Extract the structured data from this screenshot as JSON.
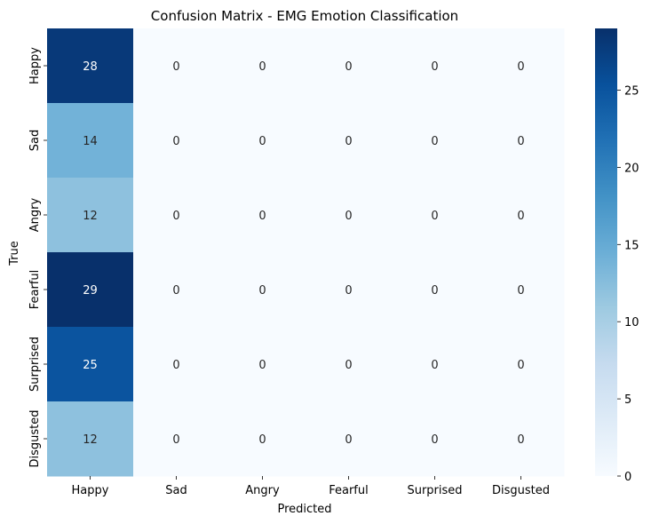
{
  "chart_data": {
    "type": "heatmap",
    "title": "Confusion Matrix - EMG Emotion Classification",
    "xlabel": "Predicted",
    "ylabel": "True",
    "x_categories": [
      "Happy",
      "Sad",
      "Angry",
      "Fearful",
      "Surprised",
      "Disgusted"
    ],
    "y_categories": [
      "Happy",
      "Sad",
      "Angry",
      "Fearful",
      "Surprised",
      "Disgusted"
    ],
    "values": [
      [
        28,
        0,
        0,
        0,
        0,
        0
      ],
      [
        14,
        0,
        0,
        0,
        0,
        0
      ],
      [
        12,
        0,
        0,
        0,
        0,
        0
      ],
      [
        29,
        0,
        0,
        0,
        0,
        0
      ],
      [
        25,
        0,
        0,
        0,
        0,
        0
      ],
      [
        12,
        0,
        0,
        0,
        0,
        0
      ]
    ],
    "colormap": "Blues",
    "colorbar": {
      "range": [
        0,
        29
      ],
      "ticks": [
        0,
        5,
        10,
        15,
        20,
        25
      ]
    },
    "annotations": true,
    "grid": false
  }
}
